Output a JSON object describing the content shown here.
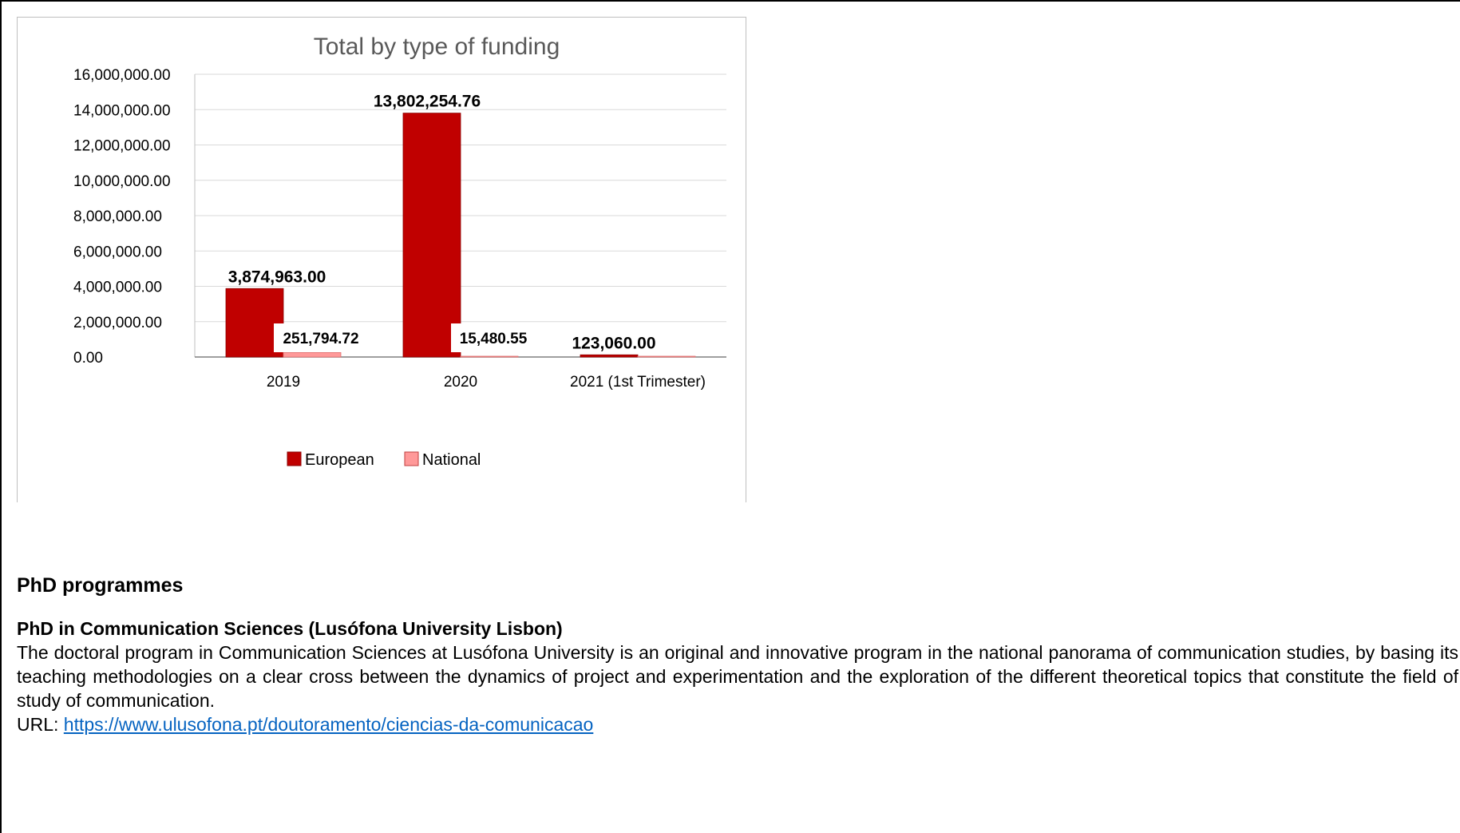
{
  "chart_data": {
    "type": "bar",
    "title": "Total by type of funding",
    "categories": [
      "2019",
      "2020",
      "2021 (1st Trimester)"
    ],
    "series": [
      {
        "name": "European",
        "values": [
          3874963.0,
          13802254.76,
          123060.0
        ],
        "labels": [
          "3,874,963.00",
          "13,802,254.76",
          "123,060.00"
        ]
      },
      {
        "name": "National",
        "values": [
          251794.72,
          15480.55,
          0
        ],
        "labels": [
          "251,794.72",
          "15,480.55",
          ""
        ]
      }
    ],
    "ylim": [
      0,
      16000000
    ],
    "yticks": [
      "0.00",
      "2,000,000.00",
      "4,000,000.00",
      "6,000,000.00",
      "8,000,000.00",
      "10,000,000.00",
      "12,000,000.00",
      "14,000,000.00",
      "16,000,000.00"
    ],
    "ytick_values": [
      0,
      2000000,
      4000000,
      6000000,
      8000000,
      10000000,
      12000000,
      14000000,
      16000000
    ],
    "grid": true,
    "legend_position": "bottom",
    "colors": {
      "European": "#c00000",
      "National": "#ff9999"
    }
  },
  "content": {
    "section_heading": "PhD programmes",
    "program_title": "PhD in Communication Sciences (Lusófona University Lisbon)",
    "program_description": "The doctoral program in Communication Sciences at Lusófona University is an original and innovative program in the national panorama of communication studies, by basing its teaching methodologies on a clear cross between the dynamics of project and experimentation and the exploration of the different theoretical topics that constitute the field of study of communication.",
    "url_label": "URL: ",
    "url": "https://www.ulusofona.pt/doutoramento/ciencias-da-comunicacao"
  }
}
